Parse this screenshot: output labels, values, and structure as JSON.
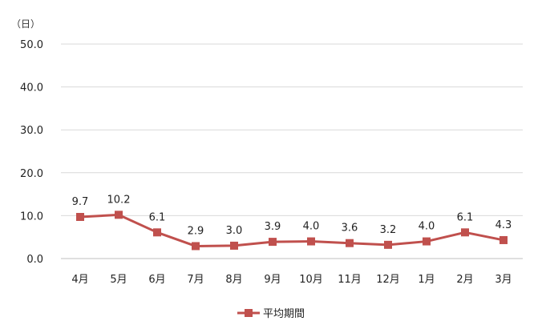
{
  "chart_data": {
    "type": "line",
    "unit_label": "（日）",
    "categories": [
      "4月",
      "5月",
      "6月",
      "7月",
      "8月",
      "9月",
      "10月",
      "11月",
      "12月",
      "1月",
      "2月",
      "3月"
    ],
    "series": [
      {
        "name": "平均期間",
        "values": [
          9.7,
          10.2,
          6.1,
          2.9,
          3.0,
          3.9,
          4.0,
          3.6,
          3.2,
          4.0,
          6.1,
          4.3
        ],
        "data_labels": [
          "9.7",
          "10.2",
          "6.1",
          "2.9",
          "3.0",
          "3.9",
          "4.0",
          "3.6",
          "3.2",
          "4.0",
          "6.1",
          "4.3"
        ],
        "color": "#c0504d",
        "marker": "square"
      }
    ],
    "y_ticks": [
      "0.0",
      "10.0",
      "20.0",
      "30.0",
      "40.0",
      "50.0"
    ],
    "ylim": [
      0,
      50
    ],
    "grid": true,
    "legend_position": "bottom-center",
    "title": "",
    "xlabel": "",
    "ylabel": ""
  }
}
